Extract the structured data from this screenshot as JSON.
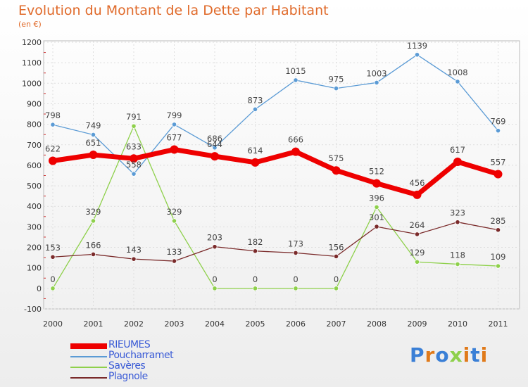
{
  "page": {
    "title": "Evolution du Montant de la Dette par Habitant",
    "subtitle": "(en €)"
  },
  "chart_data": {
    "type": "line",
    "x": [
      "2000",
      "2001",
      "2002",
      "2003",
      "2004",
      "2005",
      "2006",
      "2007",
      "2008",
      "2009",
      "2010",
      "2011"
    ],
    "ylim": [
      -100,
      1200
    ],
    "yticks": [
      "-100",
      "0",
      "100",
      "200",
      "300",
      "400",
      "500",
      "600",
      "700",
      "800",
      "900",
      "1000",
      "1100",
      "1200"
    ],
    "grid": true,
    "legend_position": "bottom-left",
    "series": [
      {
        "name": "RIEUMES",
        "color": "#ee0000",
        "values": [
          622,
          651,
          633,
          677,
          644,
          614,
          666,
          575,
          512,
          456,
          617,
          557
        ]
      },
      {
        "name": "Poucharramet",
        "color": "#5b9bd5",
        "values": [
          798,
          749,
          558,
          799,
          686,
          873,
          1015,
          975,
          1003,
          1139,
          1008,
          769
        ]
      },
      {
        "name": "Savères",
        "color": "#8ed04b",
        "values": [
          0,
          329,
          791,
          329,
          0,
          0,
          0,
          0,
          396,
          129,
          118,
          109
        ]
      },
      {
        "name": "Plagnole",
        "color": "#7a2a2a",
        "values": [
          153,
          166,
          143,
          133,
          203,
          182,
          173,
          156,
          301,
          264,
          323,
          285
        ]
      }
    ]
  },
  "logo": {
    "letters": [
      "P",
      "r",
      "o",
      "x",
      "i",
      "t",
      "i"
    ],
    "colors": [
      "#3a7fd6",
      "#e07a1a",
      "#3a7fd6",
      "#8ed04b",
      "#e07a1a",
      "#3a7fd6",
      "#e07a1a"
    ]
  }
}
